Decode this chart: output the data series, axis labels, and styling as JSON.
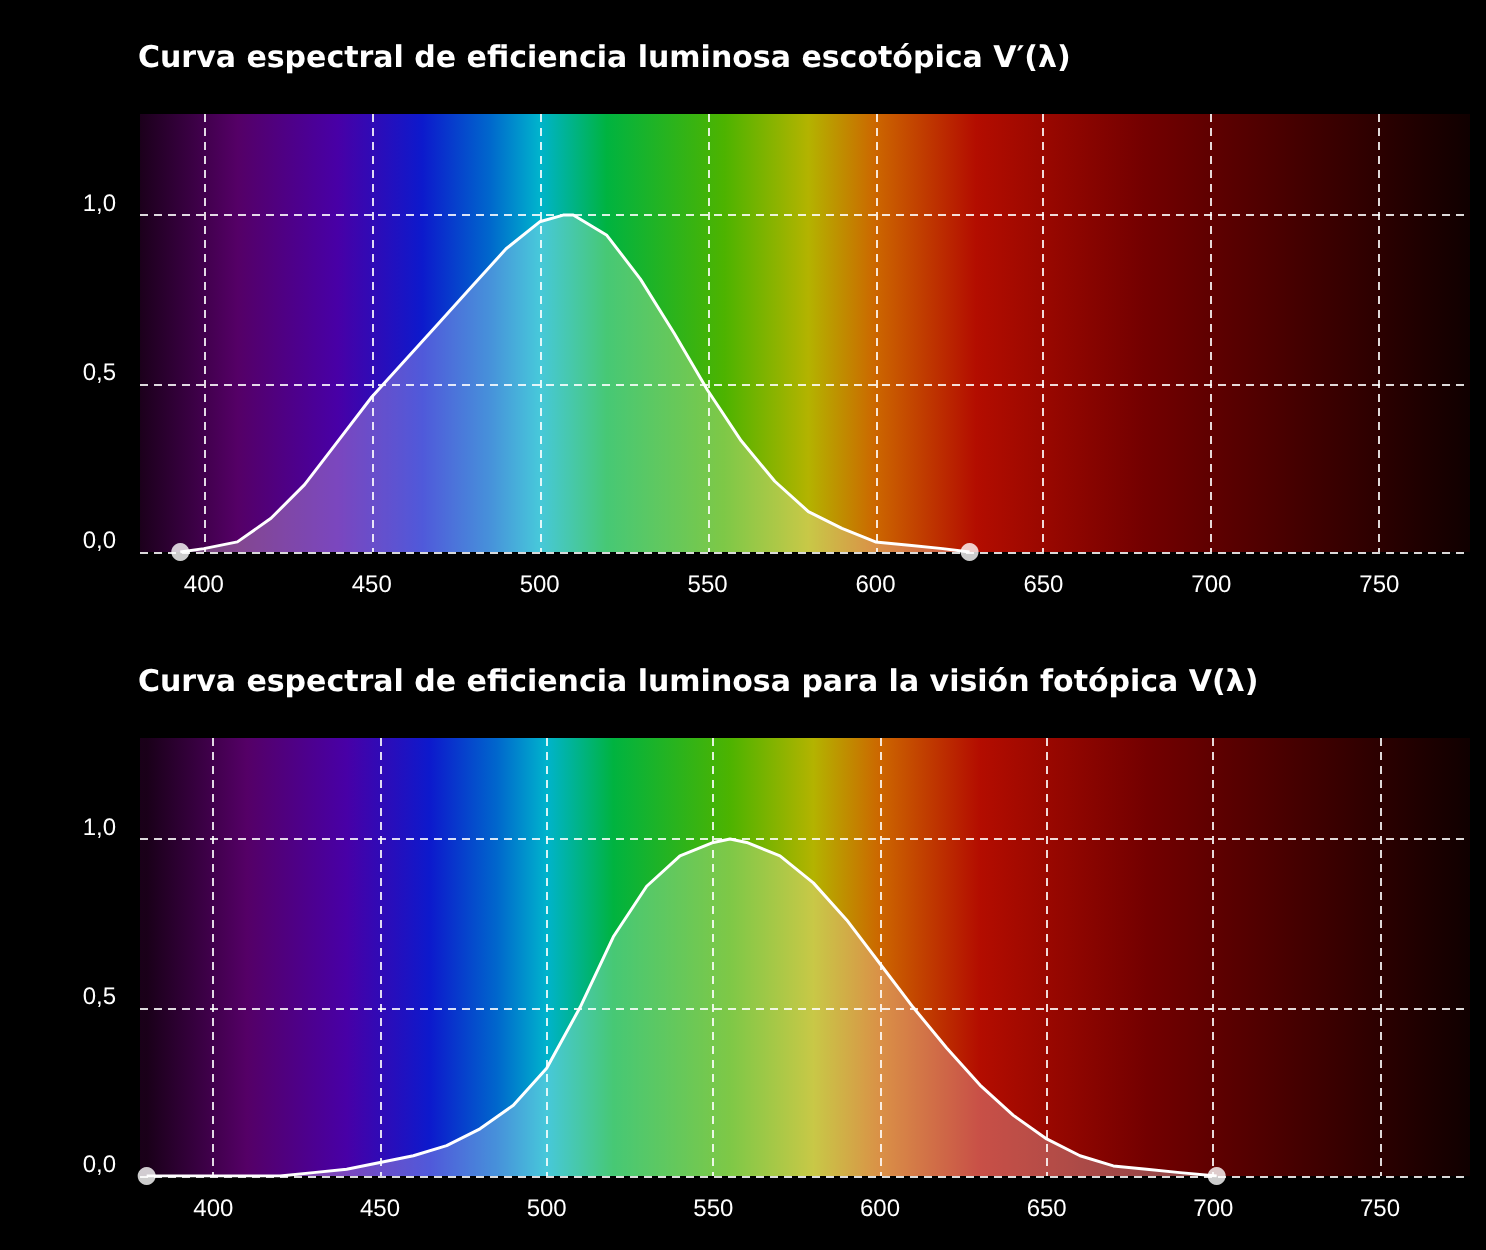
{
  "chart_data": [
    {
      "type": "area",
      "title": "Curva espectral de eficiencia luminosa escotópica V′(λ)",
      "series": [
        {
          "color": "#ffffff",
          "x": [
            393,
            400,
            410,
            420,
            430,
            440,
            450,
            460,
            470,
            480,
            490,
            500,
            507,
            510,
            520,
            530,
            540,
            550,
            560,
            570,
            580,
            590,
            600,
            610,
            620,
            628
          ],
          "values": [
            0.0,
            0.01,
            0.03,
            0.1,
            0.2,
            0.33,
            0.46,
            0.57,
            0.68,
            0.79,
            0.9,
            0.98,
            1.0,
            1.0,
            0.94,
            0.81,
            0.65,
            0.48,
            0.33,
            0.21,
            0.12,
            0.07,
            0.03,
            0.02,
            0.01,
            0.0
          ]
        },
        {
          "type": "scatter",
          "marker": "circle",
          "color": "#ffffff",
          "x": [
            393,
            628
          ],
          "values": [
            0.0,
            0.0
          ]
        }
      ],
      "xlim": [
        381,
        777
      ],
      "xticks": [
        400,
        450,
        500,
        550,
        600,
        650,
        700,
        750
      ],
      "ylim": [
        0,
        1.3
      ],
      "yticks": [
        {
          "value": 0,
          "label": "0,0"
        },
        {
          "value": 0.5,
          "label": "0,5"
        },
        {
          "value": 1.0,
          "label": "1,0"
        }
      ],
      "grid": true,
      "line_style": "solid",
      "marker": "none"
    },
    {
      "type": "area",
      "title": "Curva espectral de eficiencia luminosa para la visión fotópica V(λ)",
      "series": [
        {
          "color": "#ffffff",
          "x": [
            380,
            400,
            420,
            430,
            440,
            450,
            460,
            470,
            480,
            490,
            500,
            510,
            520,
            530,
            540,
            550,
            555,
            560,
            570,
            580,
            590,
            600,
            610,
            620,
            630,
            640,
            650,
            660,
            670,
            680,
            690,
            701
          ],
          "values": [
            0.0,
            0.0,
            0.0,
            0.01,
            0.02,
            0.04,
            0.06,
            0.09,
            0.14,
            0.21,
            0.32,
            0.5,
            0.71,
            0.86,
            0.95,
            0.99,
            1.0,
            0.99,
            0.95,
            0.87,
            0.76,
            0.63,
            0.5,
            0.38,
            0.27,
            0.18,
            0.11,
            0.06,
            0.03,
            0.02,
            0.01,
            0.0
          ]
        },
        {
          "type": "scatter",
          "marker": "circle",
          "color": "#ffffff",
          "x": [
            380,
            701
          ],
          "values": [
            0.0,
            0.0
          ]
        }
      ],
      "xlim": [
        378,
        777
      ],
      "xticks": [
        400,
        450,
        500,
        550,
        600,
        650,
        700,
        750
      ],
      "ylim": [
        0,
        1.3
      ],
      "yticks": [
        {
          "value": 0,
          "label": "0,0"
        },
        {
          "value": 0.5,
          "label": "0,5"
        },
        {
          "value": 1.0,
          "label": "1,0"
        }
      ],
      "grid": true,
      "line_style": "solid",
      "marker": "none"
    }
  ]
}
